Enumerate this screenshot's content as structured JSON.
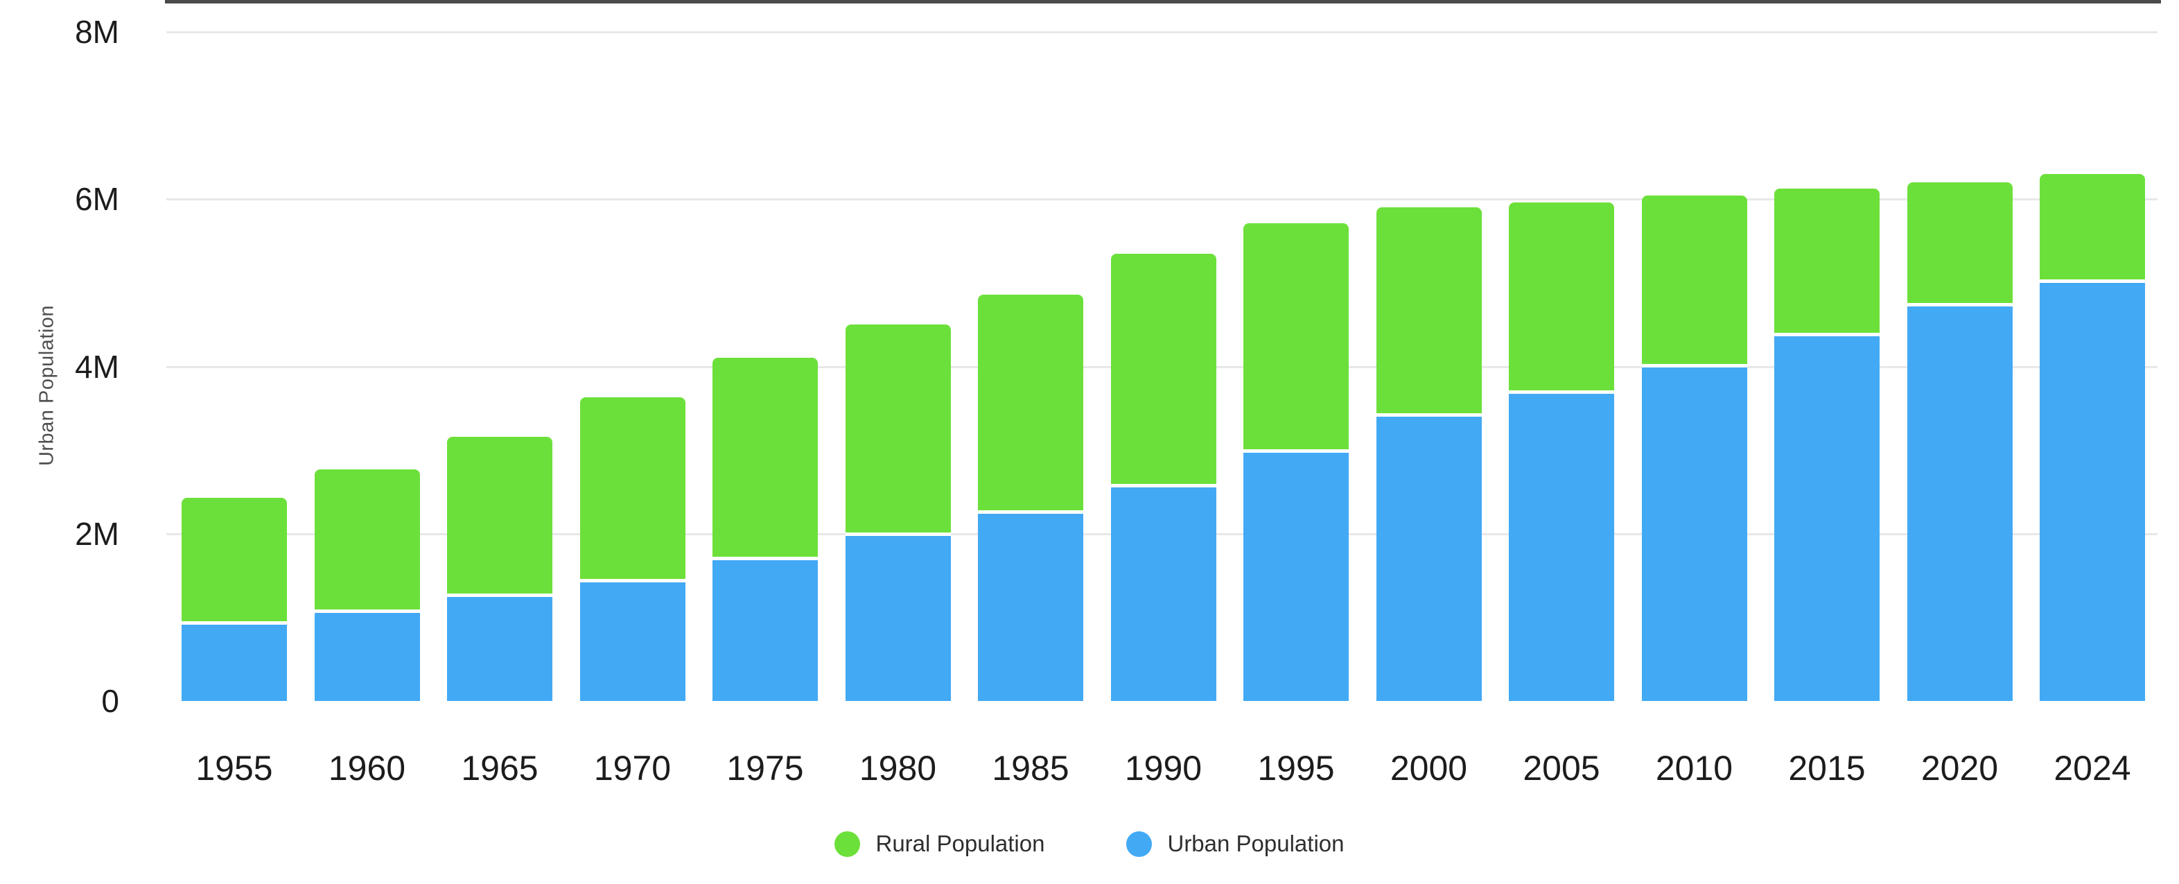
{
  "chart_data": {
    "type": "bar",
    "stacked": true,
    "unit": "millions of people",
    "categories": [
      "1955",
      "1960",
      "1965",
      "1970",
      "1975",
      "1980",
      "1985",
      "1990",
      "1995",
      "2000",
      "2005",
      "2010",
      "2015",
      "2020",
      "2024"
    ],
    "series": [
      {
        "name": "Urban Population",
        "color": "#42a9f5",
        "values": [
          0.91,
          1.05,
          1.24,
          1.42,
          1.68,
          1.97,
          2.24,
          2.55,
          2.97,
          3.4,
          3.67,
          3.99,
          4.36,
          4.72,
          5.0
        ]
      },
      {
        "name": "Rural Population",
        "color": "#6ce03a",
        "values": [
          1.52,
          1.72,
          1.92,
          2.21,
          2.42,
          2.53,
          2.62,
          2.8,
          2.74,
          2.5,
          2.29,
          2.05,
          1.77,
          1.48,
          1.3
        ]
      }
    ],
    "stack_totals": [
      2.43,
      2.77,
      3.16,
      3.63,
      4.1,
      4.5,
      4.86,
      5.35,
      5.71,
      5.9,
      5.96,
      6.04,
      6.13,
      6.2,
      6.3
    ],
    "title": "",
    "xlabel": "",
    "ylabel": "Urban Population",
    "ylim": [
      0,
      8
    ],
    "yticks": [
      {
        "label": "0",
        "value": 0
      },
      {
        "label": "2M",
        "value": 2
      },
      {
        "label": "4M",
        "value": 4
      },
      {
        "label": "6M",
        "value": 6
      },
      {
        "label": "8M",
        "value": 8
      }
    ],
    "grid": true,
    "legend": {
      "position": "bottom",
      "items": [
        "Rural Population",
        "Urban Population"
      ]
    }
  },
  "colors": {
    "grid": "#e8e8e8",
    "axis_line": "#4a4a4a",
    "tick_text": "#1c1c1c",
    "axis_title_text": "#4f4f4f",
    "legend_text": "#2e2e2e",
    "background": "#ffffff"
  }
}
